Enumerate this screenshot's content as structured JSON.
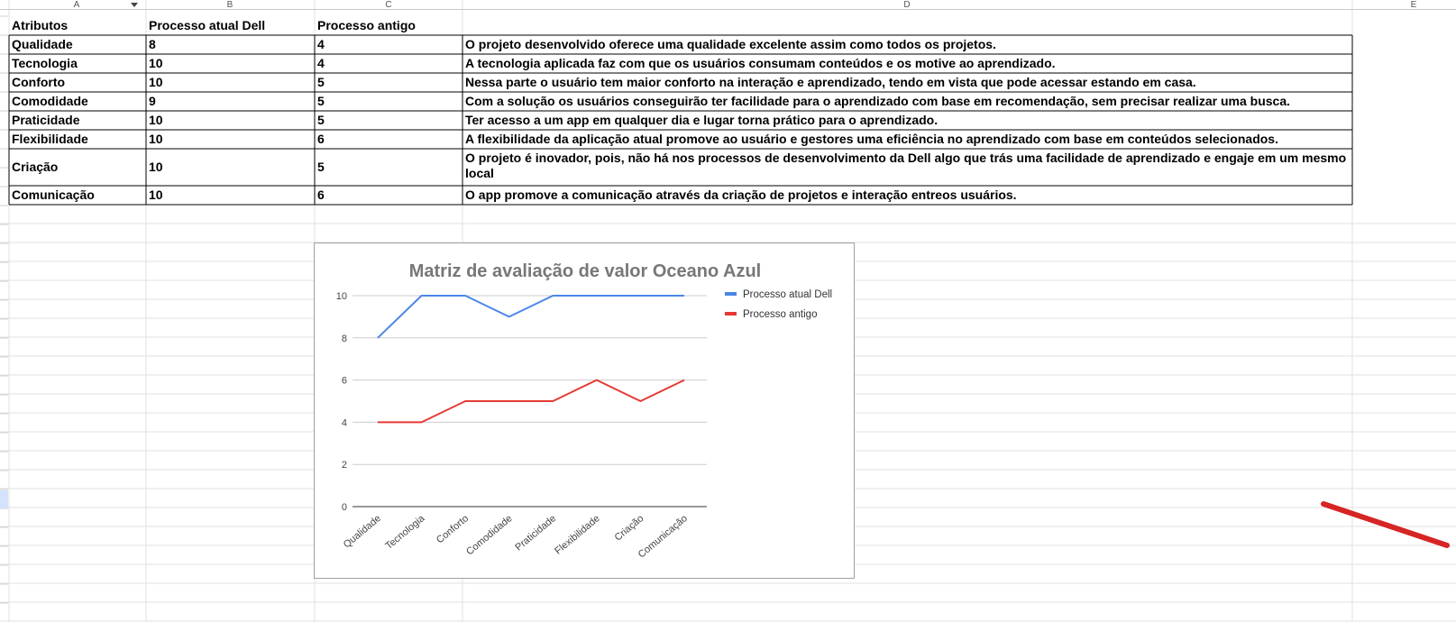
{
  "sheet": {
    "column_letters": [
      "A",
      "B",
      "C",
      "D",
      "E"
    ],
    "headers": [
      "Atributos",
      "Processo atual Dell",
      "Processo antigo",
      ""
    ],
    "rows": [
      {
        "atributo": "Qualidade",
        "atual": "8",
        "antigo": "4",
        "descricao": "O projeto desenvolvido oferece uma qualidade excelente assim como todos os projetos."
      },
      {
        "atributo": "Tecnologia",
        "atual": "10",
        "antigo": "4",
        "descricao": "A tecnologia aplicada faz com que os usuários consumam conteúdos e os motive ao aprendizado."
      },
      {
        "atributo": "Conforto",
        "atual": "10",
        "antigo": "5",
        "descricao": "Nessa parte o usuário tem maior conforto na interação e aprendizado, tendo em vista que pode acessar estando em casa."
      },
      {
        "atributo": "Comodidade",
        "atual": "9",
        "antigo": "5",
        "descricao": "Com a solução os usuários conseguirão ter facilidade para o aprendizado com base em recomendação, sem precisar realizar uma busca."
      },
      {
        "atributo": "Praticidade",
        "atual": "10",
        "antigo": "5",
        "descricao": "Ter acesso a um app em qualquer dia e lugar torna prático para o aprendizado."
      },
      {
        "atributo": "Flexibilidade",
        "atual": "10",
        "antigo": "6",
        "descricao": "A flexibilidade  da aplicação atual promove ao usuário e gestores uma eficiência no aprendizado com base em conteúdos selecionados."
      },
      {
        "atributo": "Criação",
        "atual": "10",
        "antigo": "5",
        "descricao": "O projeto é inovador, pois, não há nos processos de desenvolvimento da Dell algo que trás uma facilidade de aprendizado e engaje em um mesmo local"
      },
      {
        "atributo": "Comunicação",
        "atual": "10",
        "antigo": "6",
        "descricao": "O app promove a comunicação através da criação de projetos e interação entreos usuários."
      }
    ]
  },
  "chart_data": {
    "type": "line",
    "title": "Matriz de avaliação de valor Oceano Azul",
    "categories": [
      "Qualidade",
      "Tecnologia",
      "Conforto",
      "Comodidade",
      "Praticidade",
      "Flexibilidade",
      "Criação",
      "Comunicação"
    ],
    "series": [
      {
        "name": "Processo atual Dell",
        "values": [
          8,
          10,
          10,
          9,
          10,
          10,
          10,
          10
        ],
        "color": "#4a86e8"
      },
      {
        "name": "Processo antigo",
        "values": [
          4,
          4,
          5,
          5,
          5,
          6,
          5,
          6
        ],
        "color": "#e53935"
      }
    ],
    "y_ticks": [
      "0",
      "2",
      "4",
      "6",
      "8",
      "10"
    ],
    "ylim": [
      0,
      10
    ],
    "grid": true,
    "legend": "right"
  },
  "colors": {
    "annotation_stroke": "#d62525",
    "gridline": "#e2e2e2",
    "cell_border": "#000000"
  }
}
